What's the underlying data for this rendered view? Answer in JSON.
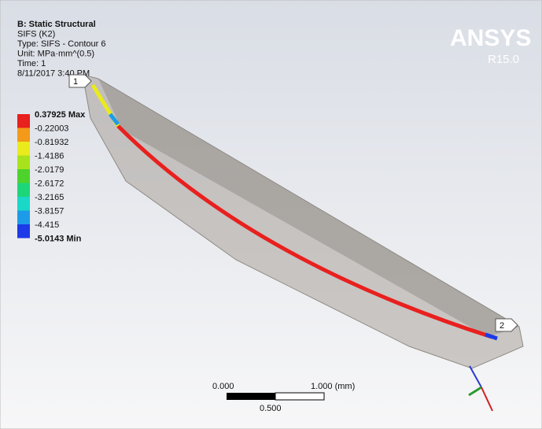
{
  "header": {
    "lines": [
      "B: Static Structural",
      "SIFS (K2)",
      "Type: SIFS - Contour 6",
      "Unit: MPa·mm^(0.5)",
      "Time: 1",
      "8/11/2017 3:40 PM"
    ]
  },
  "logo": {
    "brand": "ANSYS",
    "version": "R15.0"
  },
  "legend": {
    "labels": [
      "0.37925 Max",
      "-0.22003",
      "-0.81932",
      "-1.4186",
      "-2.0179",
      "-2.6172",
      "-3.2165",
      "-3.8157",
      "-4.415",
      "-5.0143 Min"
    ],
    "colors": [
      "#e8201e",
      "#f39a1a",
      "#eaea1c",
      "#a8e21c",
      "#4ed32c",
      "#1ed67a",
      "#1ad8c8",
      "#1c9ce8",
      "#1c3ae8"
    ]
  },
  "markers": [
    "1",
    "2"
  ],
  "scale": {
    "left": "0.000",
    "right": "1.000 (mm)",
    "middle": "0.500"
  }
}
